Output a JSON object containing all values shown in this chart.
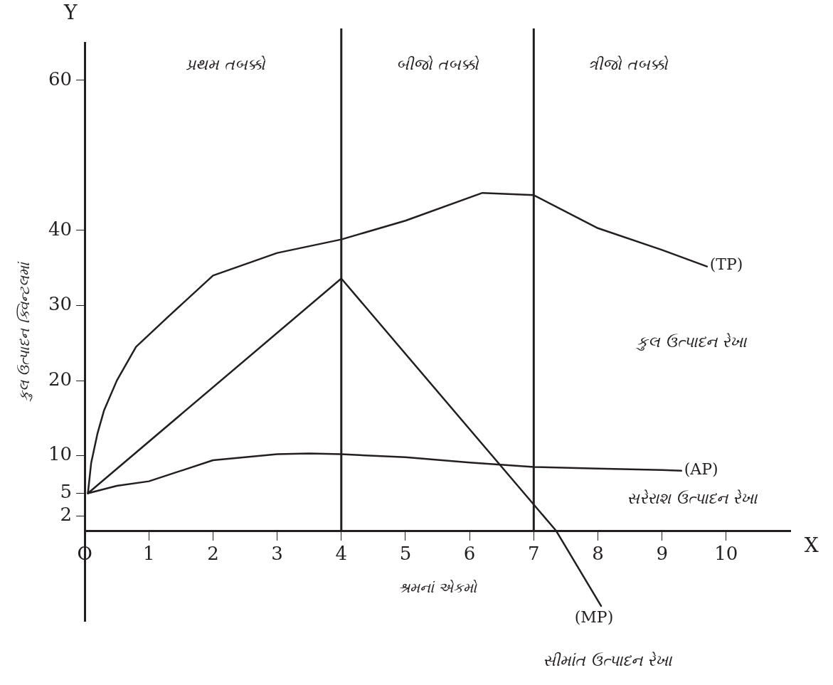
{
  "chart_data": {
    "type": "line",
    "xlabel": "શ્રમનાં એકમો",
    "ylabel": "કુલ ઉત્પાદન ક્વિન્ટલમાં",
    "xlim": [
      0,
      11
    ],
    "xticks": [
      {
        "value": 0,
        "label": "O"
      },
      1,
      2,
      3,
      4,
      5,
      6,
      7,
      8,
      9,
      10
    ],
    "ylim": [
      -12,
      65
    ],
    "yticks": [
      2,
      5,
      10,
      20,
      30,
      40,
      60
    ],
    "grid": false,
    "legend": false,
    "marker": "none",
    "line_style": "solid",
    "series": [
      {
        "name": "(TP)",
        "color": "#231f20",
        "x": [
          0.05,
          0.1,
          0.2,
          0.3,
          0.5,
          0.8,
          1.3,
          2,
          3,
          4,
          5,
          6.2,
          7,
          8,
          9,
          9.7
        ],
        "values": [
          5,
          9,
          13,
          16,
          20,
          24.5,
          28.5,
          34,
          37,
          38.8,
          41.3,
          45,
          44.7,
          40.3,
          37.4,
          35.2
        ]
      },
      {
        "name": "(AP)",
        "color": "#231f20",
        "x": [
          0.05,
          0.5,
          1,
          2,
          3,
          3.5,
          4,
          5,
          6,
          7,
          8,
          9,
          9.3
        ],
        "values": [
          5,
          6,
          6.6,
          9.4,
          10.2,
          10.3,
          10.2,
          9.8,
          9.1,
          8.5,
          8.3,
          8.1,
          8
        ]
      },
      {
        "name": "(MP)",
        "color": "#231f20",
        "x": [
          0.05,
          4,
          7.35,
          8.05
        ],
        "values": [
          5,
          33.6,
          0,
          -10
        ]
      }
    ],
    "ref_lines": [
      {
        "axis": "x",
        "value": 4
      },
      {
        "axis": "x",
        "value": 7
      }
    ],
    "annotations": [
      "પ્રથમ તબક્કો",
      "બીજો તબક્કો",
      "ત્રીજો તબક્કો",
      "કુલ ઉત્પાદન રેખા",
      "સરેરાશ ઉત્પાદન રેખા",
      "સીમાંત ઉત્પાદન રેખા",
      "Y",
      "X"
    ]
  }
}
